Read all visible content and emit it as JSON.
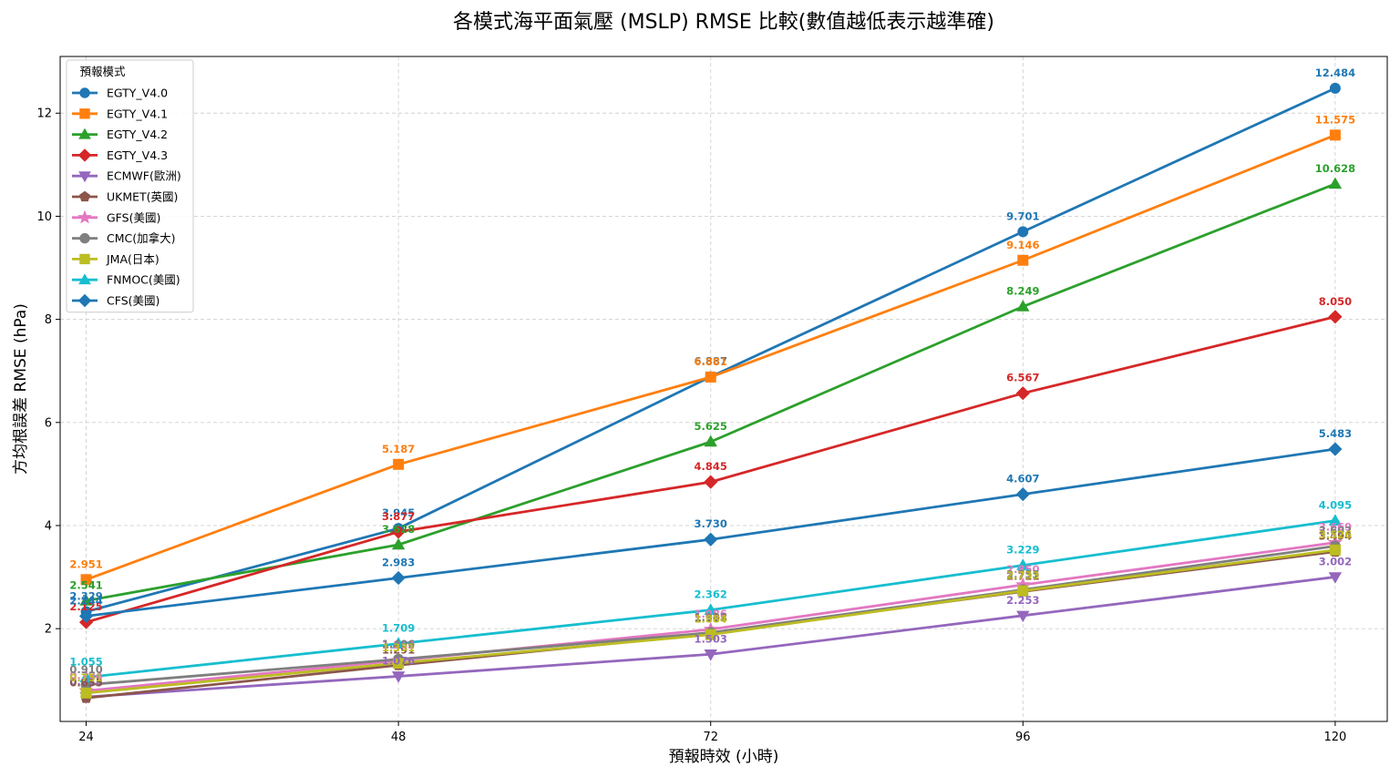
{
  "chart_data": {
    "type": "line",
    "title": "各模式海平面氣壓 (MSLP) RMSE 比較(數值越低表示越準確)",
    "xlabel": "預報時效 (小時)",
    "ylabel": "方均根誤差 RMSE (hPa)",
    "x": [
      24,
      48,
      72,
      96,
      120
    ],
    "xlim": [
      22,
      124
    ],
    "ylim": [
      0.2,
      13.1
    ],
    "yticks": [
      2,
      4,
      6,
      8,
      10,
      12
    ],
    "grid": true,
    "legend_title": "預報模式",
    "legend_position": "top-left",
    "series": [
      {
        "name": "EGTY_V4.0",
        "color": "#1f77b4",
        "marker": "circle",
        "values": [
          2.329,
          3.945,
          6.887,
          9.701,
          12.484
        ],
        "labels": [
          "2.329",
          "3.945",
          "6.887",
          "9.701",
          "12.484"
        ]
      },
      {
        "name": "EGTY_V4.1",
        "color": "#ff7f0e",
        "marker": "square",
        "values": [
          2.951,
          5.187,
          6.881,
          9.146,
          11.575
        ],
        "labels": [
          "2.951",
          "5.187",
          "6.881",
          "9.146",
          "11.575"
        ]
      },
      {
        "name": "EGTY_V4.2",
        "color": "#2ca02c",
        "marker": "triangle-up",
        "values": [
          2.541,
          3.628,
          5.625,
          8.249,
          10.628
        ],
        "labels": [
          "2.541",
          "3.628",
          "5.625",
          "8.249",
          "10.628"
        ]
      },
      {
        "name": "EGTY_V4.3",
        "color": "#d62728",
        "marker": "diamond",
        "values": [
          2.125,
          3.877,
          4.845,
          6.567,
          8.05
        ],
        "labels": [
          "2.125",
          "3.877",
          "4.845",
          "6.567",
          "8.050"
        ]
      },
      {
        "name": "ECMWF(歐洲)",
        "color": "#9467bd",
        "marker": "triangle-down",
        "values": [
          0.675,
          1.076,
          1.503,
          2.253,
          3.002
        ],
        "labels": [
          "0.675",
          "1.076",
          "1.503",
          "2.253",
          "3.002"
        ]
      },
      {
        "name": "UKMET(英國)",
        "color": "#8c564b",
        "marker": "pentagon",
        "values": [
          0.655,
          1.291,
          1.908,
          2.721,
          3.494
        ],
        "labels": [
          "0.655",
          "1.291",
          "1.908",
          "2.721",
          "3.494"
        ]
      },
      {
        "name": "GFS(美國)",
        "color": "#e377c2",
        "marker": "star",
        "values": [
          0.794,
          1.382,
          1.986,
          2.85,
          3.669
        ],
        "labels": [
          "0.794",
          "1.382",
          "1.986",
          "2.850",
          "3.669"
        ]
      },
      {
        "name": "CMC(加拿大)",
        "color": "#7f7f7f",
        "marker": "circle",
        "values": [
          0.91,
          1.406,
          1.922,
          2.755,
          3.602
        ],
        "labels": [
          "0.910",
          "1.406",
          "1.922",
          "2.755",
          "3.602"
        ]
      },
      {
        "name": "JMA(日本)",
        "color": "#bcbd22",
        "marker": "square",
        "values": [
          0.751,
          1.331,
          1.884,
          2.733,
          3.526
        ],
        "labels": [
          "0.751",
          "1.331",
          "1.884",
          "2.733",
          "3.526"
        ]
      },
      {
        "name": "FNMOC(美國)",
        "color": "#17becf",
        "marker": "triangle-up",
        "values": [
          1.055,
          1.709,
          2.362,
          3.229,
          4.095
        ],
        "labels": [
          "1.055",
          "1.709",
          "2.362",
          "3.229",
          "4.095"
        ]
      },
      {
        "name": "CFS(美國)",
        "color": "#1f77b4",
        "marker": "diamond",
        "values": [
          2.244,
          2.983,
          3.73,
          4.607,
          5.483
        ],
        "labels": [
          "2.244",
          "2.983",
          "3.730",
          "4.607",
          "5.483"
        ]
      }
    ]
  }
}
